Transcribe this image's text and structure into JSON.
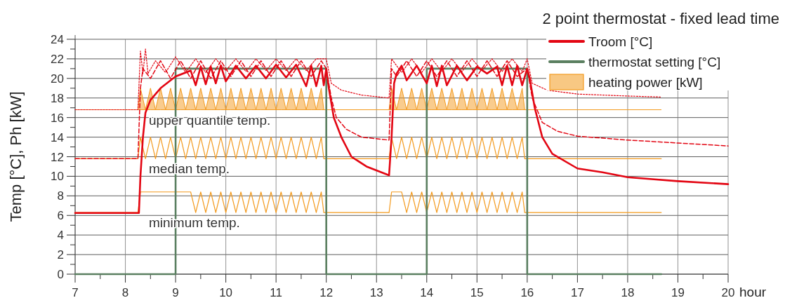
{
  "chart_data": {
    "type": "line",
    "title": "2 point thermostat - fixed lead time",
    "xlabel": "hour",
    "ylabel": "Temp [°C], Ph [kW]",
    "xlim": [
      7,
      20
    ],
    "xticks": [
      7,
      {
        "value": 7.5,
        "label": null
      },
      8,
      {
        "value": 8.5,
        "label": null
      },
      9,
      {
        "value": 9.5,
        "label": null
      },
      10,
      {
        "value": 10.5,
        "label": null
      },
      11,
      {
        "value": 11.5,
        "label": null
      },
      12,
      {
        "value": 12.5,
        "label": null
      },
      13,
      {
        "value": 13.5,
        "label": null
      },
      14,
      {
        "value": 14.5,
        "label": null
      },
      15,
      {
        "value": 15.5,
        "label": null
      },
      16,
      {
        "value": 16.5,
        "label": null
      },
      17,
      {
        "value": 17.5,
        "label": null
      },
      18,
      {
        "value": 18.5,
        "label": null
      },
      19,
      {
        "value": 19.5,
        "label": null
      },
      20
    ],
    "ylim": [
      0,
      24
    ],
    "yticks": [
      0,
      {
        "value": 1,
        "label": null
      },
      2,
      {
        "value": 3,
        "label": null
      },
      4,
      {
        "value": 5,
        "label": null
      },
      6,
      {
        "value": 7,
        "label": null
      },
      8,
      {
        "value": 9,
        "label": null
      },
      10,
      {
        "value": 11,
        "label": null
      },
      12,
      {
        "value": 13,
        "label": null
      },
      14,
      {
        "value": 15,
        "label": null
      },
      16,
      {
        "value": 17,
        "label": null
      },
      18,
      {
        "value": 19,
        "label": null
      },
      20,
      {
        "value": 21,
        "label": null
      },
      22,
      {
        "value": 23,
        "label": null
      },
      24
    ],
    "grid": true,
    "legend": "top right",
    "x": [
      7,
      8.25,
      8.3,
      8.4,
      8.5,
      8.6,
      8.7,
      8.8,
      8.9,
      9,
      9.1,
      9.2,
      9.3,
      9.4,
      9.5,
      9.6,
      9.7,
      9.8,
      9.9,
      10,
      10.1,
      10.2,
      10.3,
      10.4,
      10.5,
      10.6,
      10.7,
      10.8,
      10.9,
      11,
      11.1,
      11.2,
      11.3,
      11.4,
      11.5,
      11.6,
      11.7,
      11.8,
      11.9,
      11.95,
      12,
      13.25,
      13.3,
      13.4,
      13.5,
      13.6,
      13.7,
      13.8,
      13.9,
      14,
      14.1,
      14.2,
      14.3,
      14.4,
      14.5,
      14.6,
      14.7,
      14.8,
      14.9,
      15,
      15.1,
      15.2,
      15.3,
      15.4,
      15.5,
      15.6,
      15.7,
      15.8,
      15.9,
      15.95,
      16,
      18.67
    ],
    "annotations": [
      "upper quantile temp.",
      "median temp.",
      "minimum temp."
    ],
    "series": [
      {
        "type": "area",
        "name": "heating power [kW]",
        "color": "#f39a1e",
        "values": [
          16.8,
          16.8,
          19,
          16.8,
          19,
          16.8,
          19,
          16.8,
          19,
          16.8,
          19,
          16.8,
          19,
          16.8,
          19,
          16.8,
          19,
          16.8,
          19,
          16.8,
          19,
          16.8,
          19,
          16.8,
          19,
          16.8,
          19,
          16.8,
          19,
          16.8,
          19,
          16.8,
          19,
          16.8,
          19,
          16.8,
          19,
          16.8,
          19,
          16.8,
          16.8,
          16.8,
          19,
          16.8,
          19,
          16.8,
          19,
          16.8,
          19,
          16.8,
          19,
          16.8,
          19,
          16.8,
          19,
          16.8,
          19,
          16.8,
          19,
          16.8,
          19,
          16.8,
          19,
          16.8,
          19,
          16.8,
          19,
          16.8,
          19,
          16.8,
          16.8,
          16.8
        ]
      },
      {
        "type": "line",
        "color": "#f39a1e",
        "values": [
          11.8,
          11.8,
          14,
          11.8,
          14,
          11.8,
          14,
          11.8,
          14,
          11.8,
          14,
          11.8,
          14,
          11.8,
          14,
          11.8,
          14,
          11.8,
          14,
          11.8,
          14,
          11.8,
          14,
          11.8,
          14,
          11.8,
          14,
          11.8,
          14,
          11.8,
          14,
          11.8,
          14,
          11.8,
          14,
          11.8,
          14,
          11.8,
          14,
          11.8,
          11.8,
          11.8,
          14,
          11.8,
          14,
          11.8,
          14,
          11.8,
          14,
          11.8,
          14,
          11.8,
          14,
          11.8,
          14,
          11.8,
          14,
          11.8,
          14,
          11.8,
          14,
          11.8,
          14,
          11.8,
          14,
          11.8,
          14,
          11.8,
          14,
          11.8,
          11.8,
          11.8
        ]
      },
      {
        "type": "line",
        "color": "#f39a1e",
        "values": [
          6.3,
          6.3,
          8.4,
          8.4,
          8.4,
          8.4,
          8.4,
          8.4,
          8.4,
          8.4,
          8.4,
          8.4,
          8.4,
          6.3,
          8.4,
          6.3,
          8.4,
          6.3,
          8.4,
          6.3,
          8.4,
          6.3,
          8.4,
          6.3,
          8.4,
          6.3,
          8.4,
          6.3,
          8.4,
          6.3,
          8.4,
          6.3,
          8.4,
          6.3,
          8.4,
          6.3,
          8.4,
          6.3,
          8.4,
          6.3,
          6.3,
          6.3,
          8.4,
          8.4,
          8.4,
          6.3,
          8.4,
          6.3,
          8.4,
          6.3,
          8.4,
          6.3,
          8.4,
          6.3,
          8.4,
          6.3,
          8.4,
          6.3,
          8.4,
          6.3,
          8.4,
          6.3,
          8.4,
          6.3,
          8.4,
          6.3,
          8.4,
          6.3,
          8.4,
          6.3,
          6.3,
          6.3
        ]
      },
      {
        "name": "thermostat setting [°C]",
        "color": "#5a7f60",
        "line_style": "solid",
        "x": [
          7,
          9,
          9,
          12,
          12,
          14,
          14,
          16,
          16,
          18.67
        ],
        "values": [
          0,
          0,
          21,
          21,
          0,
          0,
          21,
          21,
          0,
          0
        ]
      },
      {
        "color": "#e30613",
        "line_style": "dotted",
        "x": [
          7,
          8.25,
          8.3,
          8.35,
          8.4,
          8.45,
          8.6,
          8.8,
          9,
          9.2,
          9.4,
          9.6,
          9.8,
          10,
          10.2,
          10.4,
          10.6,
          10.8,
          11,
          11.2,
          11.4,
          11.6,
          11.8,
          12,
          12.1,
          12.3,
          12.7,
          13.25,
          13.3,
          13.5,
          13.7,
          13.9,
          14.1,
          14.3,
          14.5,
          14.7,
          14.9,
          15.1,
          15.3,
          15.5,
          15.7,
          15.9,
          16,
          16.1,
          16.4,
          17,
          18,
          18.67
        ],
        "values": [
          16.8,
          16.8,
          22.8,
          20.5,
          23,
          20.5,
          21.8,
          20.6,
          22.2,
          20.6,
          22,
          20.6,
          22,
          20.8,
          22,
          20.7,
          22,
          20.8,
          22,
          20.8,
          22,
          20.8,
          22,
          22,
          19.5,
          18.8,
          18.3,
          18,
          22,
          20.6,
          22,
          20.6,
          22,
          20.7,
          22,
          20.7,
          22,
          20.8,
          22,
          20.7,
          22,
          20.7,
          22,
          19.5,
          18.8,
          18.4,
          18.2,
          18.1
        ]
      },
      {
        "color": "#e30613",
        "line_style": "dashed",
        "x": [
          7,
          8.25,
          8.3,
          8.35,
          8.5,
          8.7,
          8.9,
          9.1,
          9.3,
          9.5,
          9.7,
          9.9,
          10.1,
          10.3,
          10.5,
          10.7,
          10.9,
          11.1,
          11.3,
          11.5,
          11.7,
          11.9,
          12,
          12.1,
          12.2,
          12.4,
          12.7,
          13.25,
          13.3,
          13.4,
          13.6,
          13.8,
          14,
          14.2,
          14.4,
          14.6,
          14.8,
          15,
          15.2,
          15.4,
          15.6,
          15.8,
          16,
          16.1,
          16.3,
          16.6,
          17,
          18,
          19,
          20
        ],
        "values": [
          11.8,
          11.8,
          19,
          21,
          20,
          21.8,
          20,
          21.8,
          20,
          21.8,
          20,
          21.8,
          20.2,
          21.8,
          20.2,
          21.8,
          20.2,
          21.8,
          20.2,
          21.8,
          20.2,
          21.8,
          21,
          18,
          16,
          14.8,
          14,
          13.7,
          21,
          20.2,
          21.8,
          20.2,
          21.8,
          20.2,
          21.8,
          20.2,
          21.8,
          20.2,
          21.8,
          20.2,
          21.8,
          20.2,
          21,
          18,
          15.5,
          14.6,
          14.1,
          13.7,
          13.4,
          13.1
        ]
      },
      {
        "name": "Troom [°C]",
        "color": "#e30613",
        "line_style": "solid",
        "x": [
          7,
          8.27,
          8.3,
          8.35,
          8.4,
          8.5,
          8.7,
          9,
          9.3,
          9.4,
          9.5,
          9.6,
          9.7,
          9.8,
          9.9,
          10,
          10.2,
          10.4,
          10.6,
          10.8,
          11,
          11.2,
          11.4,
          11.6,
          11.7,
          11.8,
          11.9,
          11.95,
          12,
          12.05,
          12.15,
          12.3,
          12.5,
          12.8,
          13.25,
          13.3,
          13.35,
          13.4,
          13.5,
          13.6,
          13.8,
          14,
          14.1,
          14.2,
          14.3,
          14.4,
          14.6,
          14.8,
          15,
          15.2,
          15.4,
          15.5,
          15.6,
          15.7,
          15.8,
          15.9,
          16,
          16.05,
          16.15,
          16.3,
          16.5,
          17,
          17.5,
          18,
          19,
          20
        ],
        "values": [
          6.25,
          6.25,
          10,
          14,
          16.5,
          17.8,
          19,
          20.2,
          20.8,
          19.3,
          21.2,
          19.4,
          21.2,
          19.5,
          21.3,
          19.7,
          21.3,
          20,
          21.3,
          20,
          21.4,
          20.1,
          21.4,
          19.2,
          21.3,
          19.2,
          21.3,
          19.3,
          21,
          19,
          16,
          14,
          12,
          11,
          10.1,
          14,
          19.5,
          20.5,
          21.3,
          19.8,
          21.3,
          19.5,
          21.3,
          19.2,
          21.3,
          19.3,
          21.3,
          19.8,
          21.2,
          20.5,
          21.2,
          19.3,
          21.3,
          19.3,
          21.3,
          19.3,
          21,
          20,
          17,
          14,
          12.3,
          10.8,
          10.4,
          9.9,
          9.5,
          9.2
        ]
      }
    ]
  }
}
